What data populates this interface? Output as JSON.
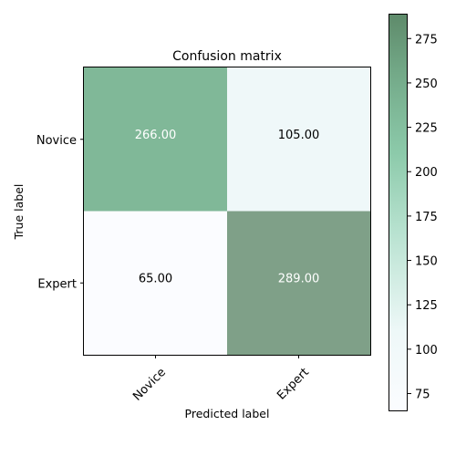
{
  "chart_data": {
    "type": "heatmap",
    "title": "Confusion matrix",
    "xlabel": "Predicted label",
    "ylabel": "True label",
    "x_categories": [
      "Novice",
      "Expert"
    ],
    "y_categories": [
      "Novice",
      "Expert"
    ],
    "values": [
      [
        266,
        105
      ],
      [
        65,
        289
      ]
    ],
    "cell_labels": [
      [
        "266.00",
        "105.00"
      ],
      [
        "65.00",
        "289.00"
      ]
    ],
    "colorbar": {
      "min": 65,
      "max": 289,
      "ticks": [
        75,
        100,
        125,
        150,
        175,
        200,
        225,
        250,
        275
      ]
    },
    "colors": {
      "high": "#7fa088",
      "mid": "#80b898",
      "low": "#fbfcff",
      "text_dark_cell": "#ffffff",
      "text_light_cell": "#000000"
    }
  }
}
